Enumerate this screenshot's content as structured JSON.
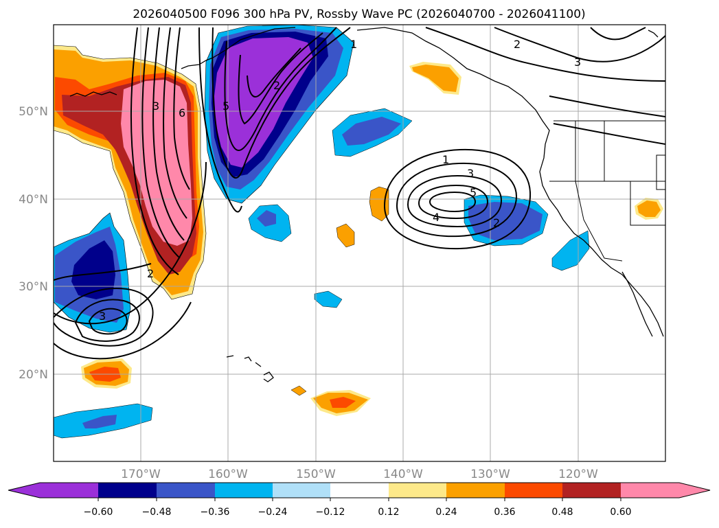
{
  "title": "2026040500 F096 300 hPa PV, Rossby Wave PC (2026040700 - 2026041100)",
  "colors": {
    "neg_ext": "#9b30d9",
    "n060": "#00008b",
    "n048": "#3a55c8",
    "n036": "#00b4f0",
    "n024": "#b0e0f8",
    "p012": "#fde98a",
    "p024": "#fba000",
    "p036": "#fc4a00",
    "p048": "#b22222",
    "pos_ext": "#ff88aa",
    "land": "#000000",
    "grid": "#a9a9a9"
  },
  "lat_labels": [
    {
      "label": "50°N",
      "value": 50
    },
    {
      "label": "40°N",
      "value": 40
    },
    {
      "label": "30°N",
      "value": 30
    },
    {
      "label": "20°N",
      "value": 20
    }
  ],
  "lon_labels": [
    {
      "label": "170°W",
      "value": -170
    },
    {
      "label": "160°W",
      "value": -160
    },
    {
      "label": "150°W",
      "value": -150
    },
    {
      "label": "140°W",
      "value": -140
    },
    {
      "label": "130°W",
      "value": -130
    },
    {
      "label": "120°W",
      "value": -120
    }
  ],
  "contour_labels": [
    "3",
    "6",
    "5",
    "2",
    "1",
    "2",
    "3",
    "1",
    "3",
    "5",
    "4",
    "2",
    "2",
    "3"
  ],
  "colorbar": {
    "ticks": [
      "−0.60",
      "−0.48",
      "−0.36",
      "−0.24",
      "−0.12",
      "0.12",
      "0.24",
      "0.36",
      "0.48",
      "0.60"
    ],
    "levels": [
      -0.6,
      -0.48,
      -0.36,
      -0.24,
      -0.12,
      0.12,
      0.24,
      0.36,
      0.48,
      0.6
    ]
  }
}
